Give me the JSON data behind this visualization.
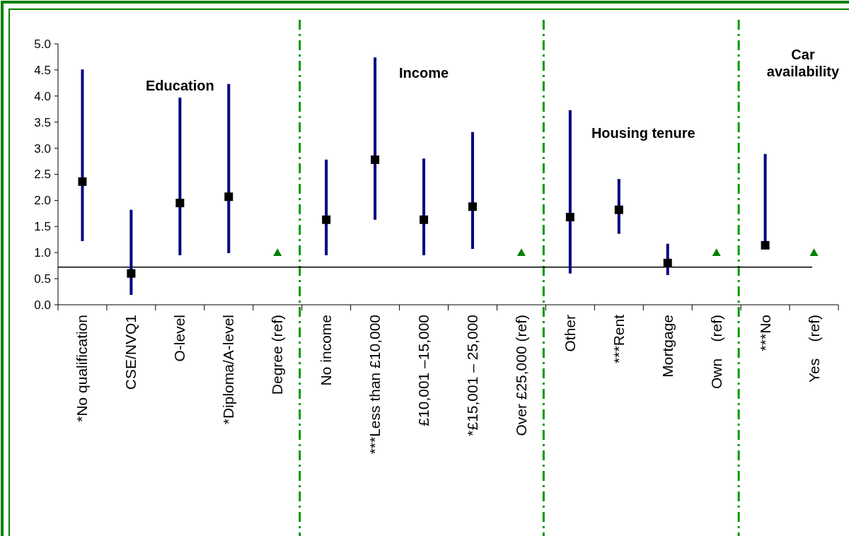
{
  "chart_data": {
    "type": "scatter",
    "categories": [
      "*No qualification",
      "CSE/NVQ1",
      "O-level",
      "*Diploma/A-level",
      "Degree (ref)",
      "No income",
      "***Less than £10,000",
      "£10,001 –15,000",
      "*£15,001 – 25,000",
      "Over £25,000 (ref)",
      "Other",
      "***Rent",
      "Mortgage",
      "Own    (ref)",
      "***No",
      "Yes    (ref)"
    ],
    "series": [
      {
        "color": "#000000",
        "marker": "square",
        "values": [
          2.36,
          0.6,
          1.95,
          2.07,
          null,
          1.63,
          2.78,
          1.63,
          1.88,
          null,
          1.68,
          1.82,
          0.8,
          null,
          1.14,
          null
        ],
        "errors": [
          [
            1.22,
            4.51
          ],
          [
            0.19,
            1.82
          ],
          [
            0.95,
            3.97
          ],
          [
            0.99,
            4.23
          ],
          null,
          [
            0.95,
            2.78
          ],
          [
            1.63,
            4.74
          ],
          [
            0.95,
            2.8
          ],
          [
            1.07,
            3.31
          ],
          null,
          [
            0.6,
            3.73
          ],
          [
            1.36,
            2.41
          ],
          [
            0.57,
            1.17
          ],
          null,
          [
            1.14,
            2.89
          ],
          null
        ]
      },
      {
        "color": "#008000",
        "marker": "triangle",
        "values": [
          null,
          null,
          null,
          null,
          1.0,
          null,
          null,
          null,
          null,
          1.0,
          null,
          null,
          null,
          1.0,
          null,
          1.0
        ]
      }
    ],
    "ylim": [
      0,
      5
    ],
    "yticks": [
      {
        "value": 0,
        "label": "0.0"
      },
      {
        "value": 0.5,
        "label": "0.5"
      },
      {
        "value": 1,
        "label": "1.0"
      },
      {
        "value": 1.5,
        "label": "1.5"
      },
      {
        "value": 2,
        "label": "2.0"
      },
      {
        "value": 2.5,
        "label": "2.5"
      },
      {
        "value": 3,
        "label": "3.0"
      },
      {
        "value": 3.5,
        "label": "3.5"
      },
      {
        "value": 4,
        "label": "4.0"
      },
      {
        "value": 4.5,
        "label": "4.5"
      },
      {
        "value": 5,
        "label": "5.0"
      }
    ],
    "ref_lines": [
      {
        "axis": "y",
        "value": 0.72,
        "color": "#000000",
        "line_style": "solid"
      }
    ],
    "annotations": [
      "Education",
      "Income",
      "Housing tenure",
      "Car availability"
    ],
    "grid": false
  }
}
